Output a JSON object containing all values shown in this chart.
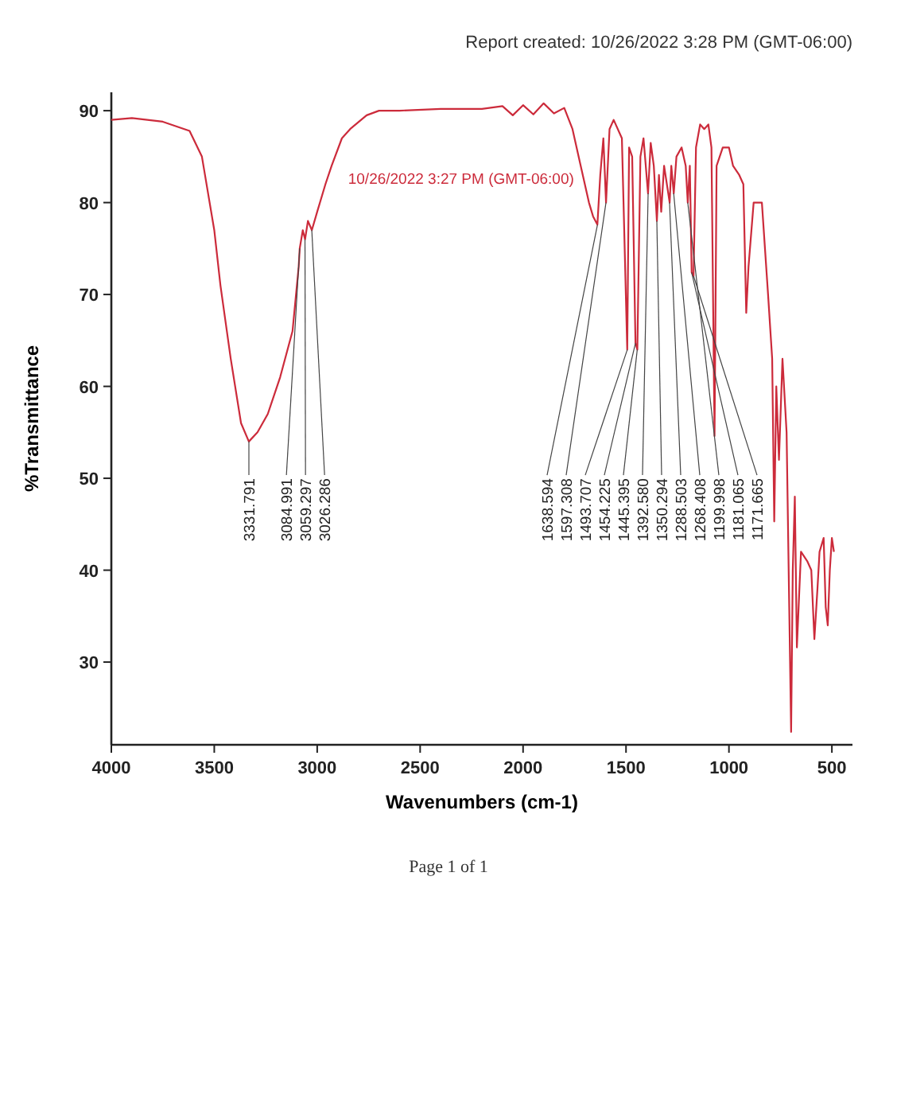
{
  "chart_data": {
    "type": "line",
    "subtitle": "Report created: 10/26/2022 3:28 PM (GMT-06:00)",
    "xlabel": "Wavenumbers (cm-1)",
    "ylabel": "%Transmittance",
    "xlim": [
      4000,
      400
    ],
    "xticks": [
      4000,
      3500,
      3000,
      2500,
      2000,
      1500,
      1000,
      500
    ],
    "ylim": [
      21,
      92
    ],
    "yticks": [
      30,
      40,
      50,
      60,
      70,
      80,
      90
    ],
    "grid": false,
    "series": [
      {
        "name": "10/26/2022 3:27 PM (GMT-06:00)",
        "color": "#cc2b3b",
        "x": [
          4000,
          3900,
          3750,
          3620,
          3560,
          3500,
          3470,
          3420,
          3370,
          3332,
          3290,
          3240,
          3180,
          3120,
          3090,
          3085,
          3070,
          3059,
          3045,
          3026,
          3000,
          2960,
          2930,
          2880,
          2840,
          2760,
          2700,
          2600,
          2400,
          2200,
          2100,
          2050,
          2000,
          1950,
          1900,
          1850,
          1800,
          1760,
          1720,
          1680,
          1660,
          1639,
          1625,
          1610,
          1597,
          1580,
          1560,
          1520,
          1494,
          1485,
          1470,
          1454,
          1445,
          1430,
          1415,
          1393,
          1380,
          1365,
          1350,
          1340,
          1329,
          1315,
          1288,
          1280,
          1268,
          1255,
          1230,
          1210,
          1200,
          1190,
          1181,
          1172,
          1160,
          1140,
          1120,
          1100,
          1085,
          1070,
          1060,
          1030,
          1000,
          980,
          950,
          930,
          916,
          905,
          880,
          840,
          810,
          790,
          780,
          770,
          757,
          740,
          720,
          698,
          690,
          680,
          670,
          650,
          620,
          600,
          585,
          570,
          560,
          540,
          530,
          520,
          510,
          500,
          490
        ],
        "values": [
          89,
          89.2,
          88.8,
          87.8,
          85,
          77,
          71,
          63,
          56,
          54,
          55,
          57,
          61,
          66,
          73,
          75,
          77,
          76,
          78,
          77,
          79,
          82,
          84,
          87,
          88,
          89.5,
          90,
          90,
          90.2,
          90.2,
          90.5,
          89.5,
          90.6,
          89.6,
          90.8,
          89.7,
          90.3,
          88,
          84,
          80,
          78.5,
          77.6,
          83,
          87,
          80,
          88,
          89,
          87,
          64,
          86,
          85,
          64.7,
          64,
          85,
          87,
          81,
          86.5,
          84,
          78,
          83,
          79,
          84,
          80,
          84,
          81,
          85,
          86,
          84,
          80,
          84,
          72.4,
          72,
          86,
          88.5,
          88,
          88.5,
          86,
          54.6,
          84,
          86,
          86,
          84,
          83,
          82,
          68,
          73,
          80,
          80,
          70,
          63,
          45.3,
          60,
          52,
          63,
          55,
          22.4,
          40,
          48,
          31.6,
          42,
          41,
          40,
          32.5,
          38,
          42,
          43.5,
          36,
          34,
          40,
          43.5,
          42
        ]
      }
    ],
    "annotations": [
      {
        "text": "3331.791",
        "x": 3331.791,
        "y": 54
      },
      {
        "text": "3084.991",
        "x": 3084.991,
        "y": 75
      },
      {
        "text": "3059.297",
        "x": 3059.297,
        "y": 76
      },
      {
        "text": "3026.286",
        "x": 3026.286,
        "y": 77
      },
      {
        "text": "1638.594",
        "x": 1638.594,
        "y": 77.6
      },
      {
        "text": "1597.308",
        "x": 1597.308,
        "y": 80
      },
      {
        "text": "1493.707",
        "x": 1493.707,
        "y": 64
      },
      {
        "text": "1454.225",
        "x": 1454.225,
        "y": 64.7
      },
      {
        "text": "1445.395",
        "x": 1445.395,
        "y": 64
      },
      {
        "text": "1392.580",
        "x": 1392.58,
        "y": 81
      },
      {
        "text": "1350.294",
        "x": 1350.294,
        "y": 78
      },
      {
        "text": "1288.503",
        "x": 1288.503,
        "y": 80
      },
      {
        "text": "1268.408",
        "x": 1268.408,
        "y": 81
      },
      {
        "text": "1199.998",
        "x": 1199.998,
        "y": 80
      },
      {
        "text": "1181.065",
        "x": 1181.065,
        "y": 72.4
      },
      {
        "text": "1171.665",
        "x": 1171.665,
        "y": 72
      },
      "Page 1 of 1"
    ]
  }
}
